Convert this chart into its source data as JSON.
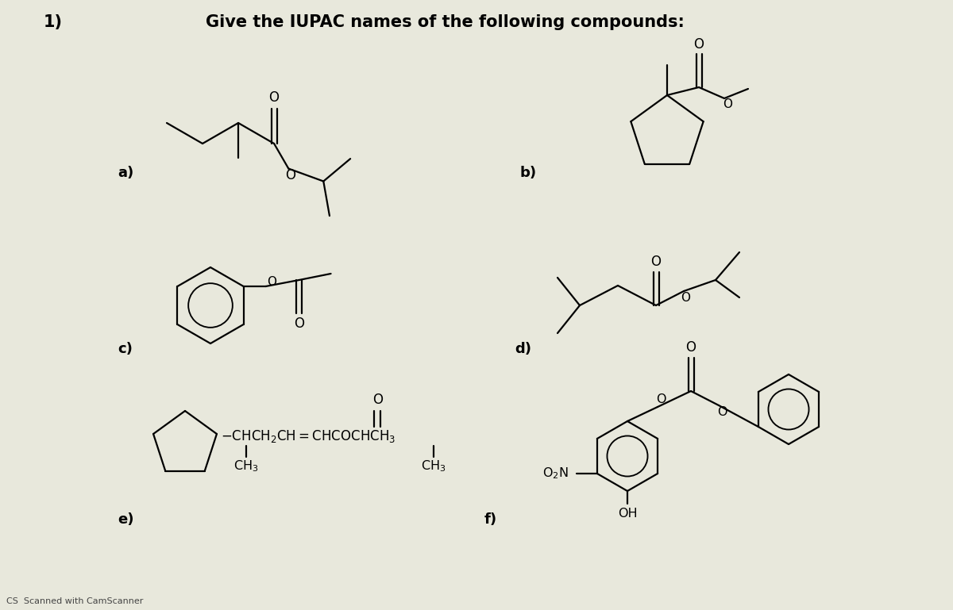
{
  "title_number": "1)",
  "title_text": "Give the IUPAC names of the following compounds:",
  "background_color": "#e8e8dc",
  "labels": [
    "a)",
    "b)",
    "c)",
    "d)",
    "e)",
    "f)"
  ],
  "footer": "CS  Scanned with CamScanner",
  "lw": 1.6
}
